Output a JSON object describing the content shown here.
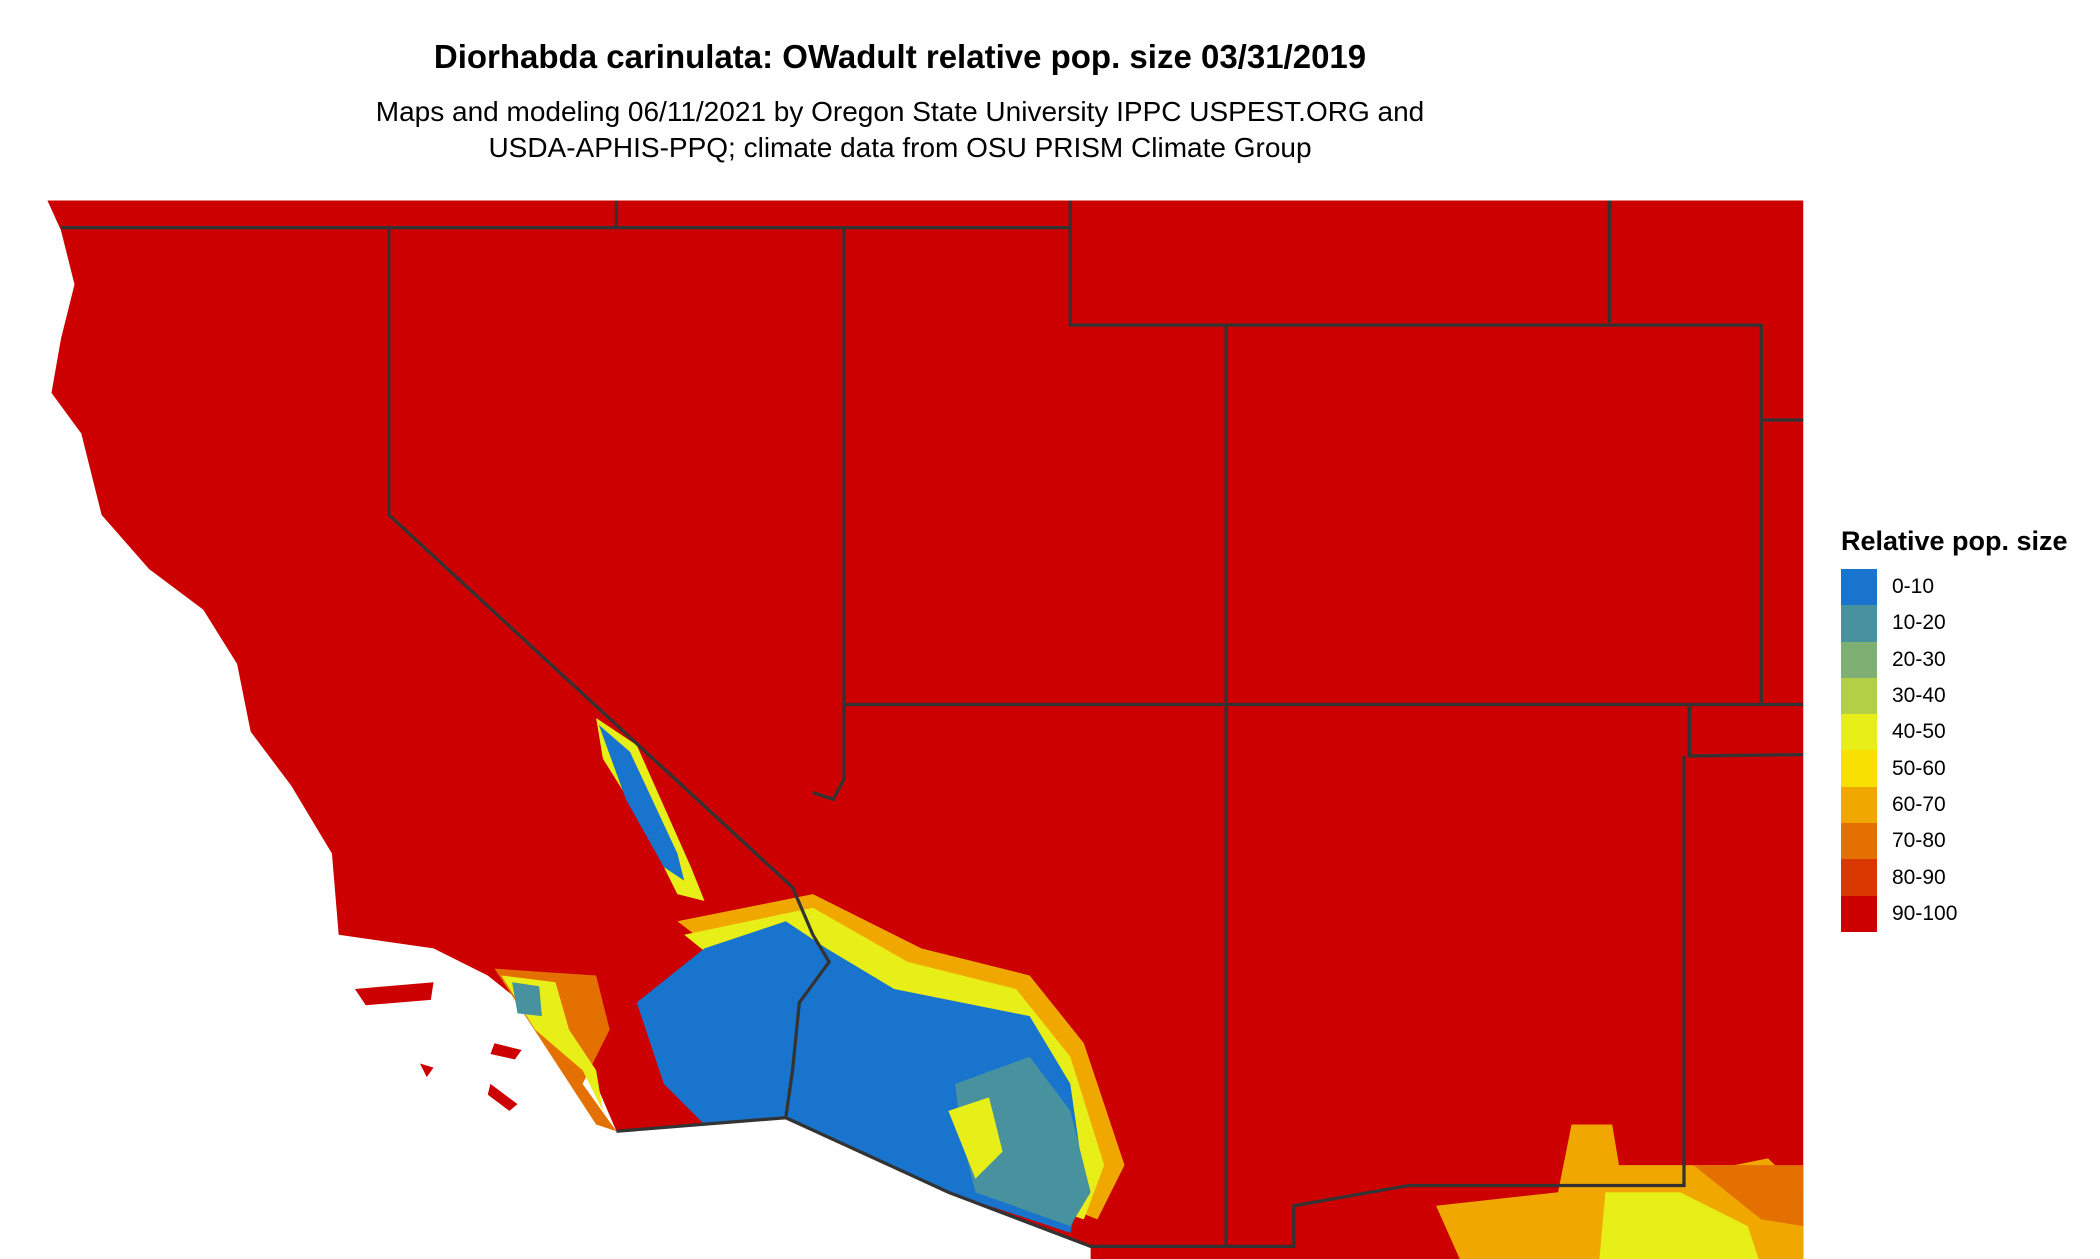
{
  "title": "Diorhabda carinulata: OWadult relative pop. size 03/31/2019",
  "subtitle_line1": "Maps and modeling 06/11/2021 by Oregon State University IPPC USPEST.ORG and",
  "subtitle_line2": "USDA-APHIS-PPQ; climate data from OSU PRISM Climate Group",
  "legend": {
    "title": "Relative pop. size",
    "items": [
      {
        "label": "0-10",
        "color": "#1874CD"
      },
      {
        "label": "10-20",
        "color": "#48929F"
      },
      {
        "label": "20-30",
        "color": "#7DB072"
      },
      {
        "label": "30-40",
        "color": "#B3CF45"
      },
      {
        "label": "40-50",
        "color": "#E8EE17"
      },
      {
        "label": "50-60",
        "color": "#F8E000"
      },
      {
        "label": "60-70",
        "color": "#F0A800"
      },
      {
        "label": "70-80",
        "color": "#E37000"
      },
      {
        "label": "80-90",
        "color": "#D93800"
      },
      {
        "label": "90-100",
        "color": "#CC0000"
      }
    ]
  },
  "colors": {
    "background": "#CC0000",
    "border": "#333333",
    "ocean": "#FFFFFF"
  }
}
